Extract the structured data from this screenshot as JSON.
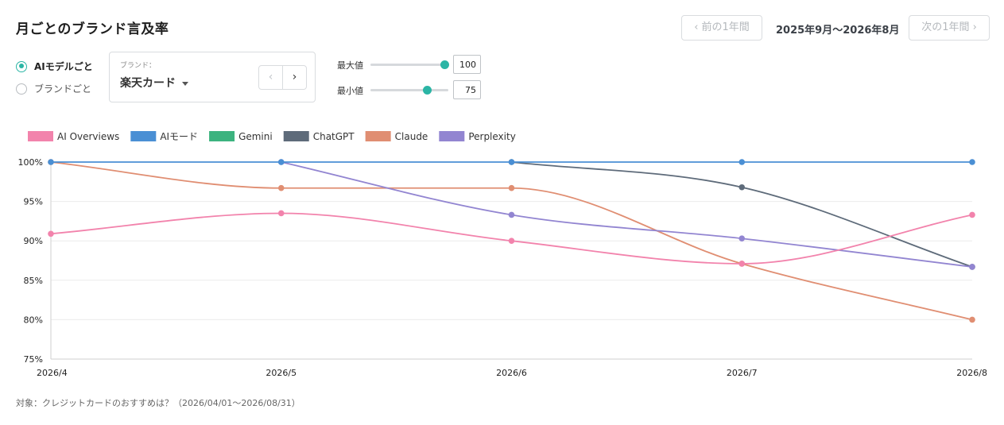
{
  "page": {
    "title": "月ごとのブランド言及率"
  },
  "period_nav": {
    "prev_label": "‹ 前の1年間",
    "period": "2025年9月〜2026年8月",
    "next_label": "次の1年間 ›"
  },
  "view_mode": {
    "options": [
      {
        "label": "AIモデルごと",
        "checked": true
      },
      {
        "label": "ブランドごと",
        "checked": false
      }
    ]
  },
  "brand_select": {
    "caption": "ブランド：",
    "value": "楽天カード",
    "prev_icon": "chevron-left-icon",
    "next_icon": "chevron-right-icon"
  },
  "range": {
    "max": {
      "label": "最大値",
      "value": "100",
      "level": 0.95
    },
    "min": {
      "label": "最小値",
      "value": "75",
      "level": 0.72
    }
  },
  "footer": {
    "text": "対象：クレジットカードのおすすめは？（2026/04/01〜2026/08/31）"
  },
  "chart_data": {
    "type": "line",
    "categories": [
      "2026/4",
      "2026/5",
      "2026/6",
      "2026/7",
      "2026/8"
    ],
    "ylim": [
      75,
      100
    ],
    "yticks": [
      100,
      95,
      90,
      85,
      80,
      75
    ],
    "ytick_labels": [
      "100%",
      "95%",
      "90%",
      "85%",
      "80%",
      "75%"
    ],
    "grid": true,
    "legend_position": "top-left",
    "series": [
      {
        "name": "AI Overviews",
        "color": "#f283ac",
        "values": [
          90.9,
          93.5,
          90.0,
          87.1,
          93.3
        ]
      },
      {
        "name": "AIモード",
        "color": "#4a8fd4",
        "values": [
          100,
          100,
          100,
          100,
          100
        ]
      },
      {
        "name": "Gemini",
        "color": "#3cb37f",
        "values": [
          null,
          null,
          null,
          null,
          null
        ]
      },
      {
        "name": "ChatGPT",
        "color": "#5e6b7a",
        "values": [
          null,
          null,
          100,
          96.8,
          86.7
        ]
      },
      {
        "name": "Claude",
        "color": "#e08e72",
        "values": [
          100,
          96.7,
          96.7,
          87.1,
          80.0
        ]
      },
      {
        "name": "Perplexity",
        "color": "#9285d1",
        "values": [
          null,
          100,
          93.3,
          90.3,
          86.7
        ]
      }
    ]
  }
}
